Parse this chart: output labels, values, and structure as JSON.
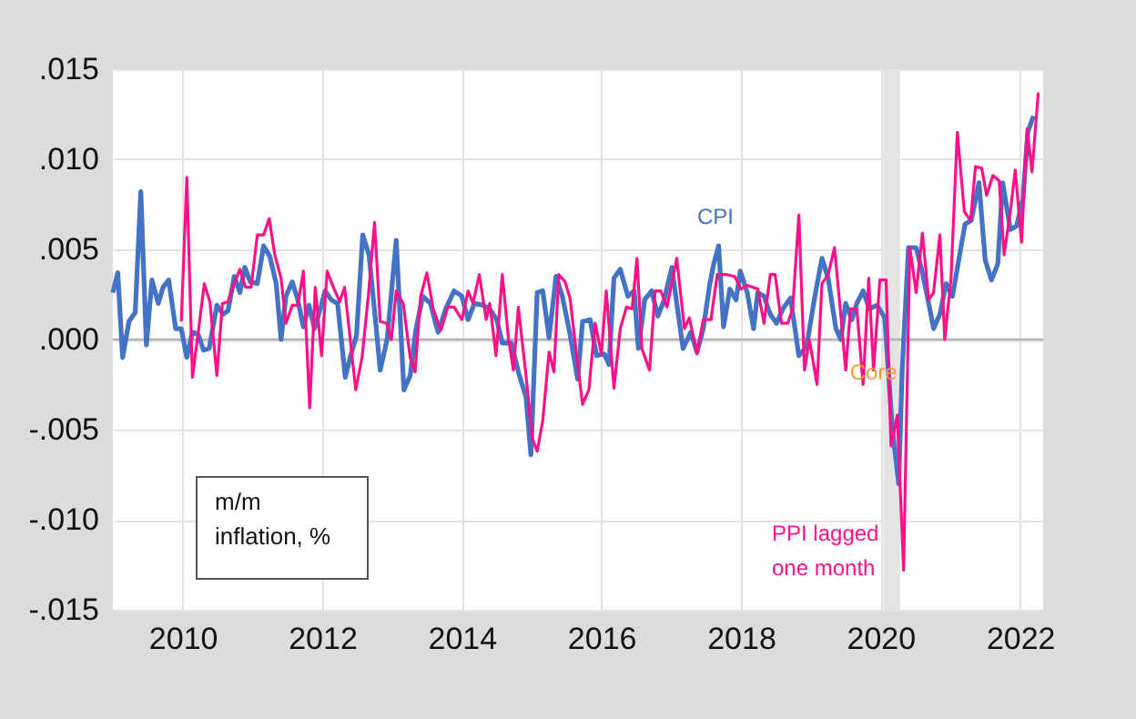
{
  "chart_data": {
    "type": "line",
    "xlim": [
      2009.0,
      2022.33
    ],
    "xticks": [
      2010,
      2012,
      2014,
      2016,
      2018,
      2020,
      2022
    ],
    "ylim": [
      -0.015,
      0.015
    ],
    "yticks": [
      {
        "value": 0.015,
        "label": ".015"
      },
      {
        "value": 0.01,
        "label": ".010"
      },
      {
        "value": 0.005,
        "label": ".005"
      },
      {
        "value": 0,
        "label": ".000"
      },
      {
        "value": -0.005,
        "label": "-.005"
      },
      {
        "value": -0.01,
        "label": "-.010"
      },
      {
        "value": -0.015,
        "label": "-.015"
      }
    ],
    "grid": true,
    "legend": false,
    "line_style": "solid",
    "marker": "none",
    "ref_lines": [
      {
        "axis": "y",
        "value": 0,
        "label": null,
        "color": "#b4b4b4"
      }
    ],
    "bands": [
      {
        "axis": "x",
        "from": 2020.04,
        "to": 2020.28,
        "label": null,
        "color": "#e4e4e4"
      }
    ],
    "annotations": [
      "m/m\ninflation, %",
      {
        "text": "Core",
        "x": 2019.9,
        "y": -0.0018
      }
    ],
    "series": [
      {
        "name": "CPI",
        "color": "#4472c4",
        "x": [
          2009.0,
          2009.07,
          2009.14,
          2009.23,
          2009.32,
          2009.4,
          2009.48,
          2009.56,
          2009.65,
          2009.72,
          2009.8,
          2009.9,
          2009.98,
          2010.06,
          2010.14,
          2010.22,
          2010.3,
          2010.38,
          2010.49,
          2010.58,
          2010.65,
          2010.74,
          2010.82,
          2010.89,
          2010.97,
          2011.07,
          2011.16,
          2011.25,
          2011.34,
          2011.41,
          2011.48,
          2011.57,
          2011.65,
          2011.73,
          2011.81,
          2011.89,
          2011.98,
          2012.04,
          2012.13,
          2012.22,
          2012.33,
          2012.4,
          2012.49,
          2012.58,
          2012.67,
          2012.76,
          2012.83,
          2012.93,
          2013.06,
          2013.17,
          2013.26,
          2013.34,
          2013.44,
          2013.55,
          2013.66,
          2013.77,
          2013.89,
          2014.0,
          2014.09,
          2014.18,
          2014.31,
          2014.4,
          2014.5,
          2014.58,
          2014.71,
          2014.81,
          2014.92,
          2014.99,
          2015.08,
          2015.16,
          2015.25,
          2015.35,
          2015.44,
          2015.55,
          2015.66,
          2015.73,
          2015.84,
          2015.93,
          2016.04,
          2016.11,
          2016.18,
          2016.27,
          2016.38,
          2016.47,
          2016.53,
          2016.62,
          2016.72,
          2016.81,
          2016.9,
          2017.01,
          2017.08,
          2017.17,
          2017.28,
          2017.37,
          2017.46,
          2017.55,
          2017.61,
          2017.68,
          2017.75,
          2017.84,
          2017.93,
          2017.99,
          2018.09,
          2018.18,
          2018.24,
          2018.33,
          2018.42,
          2018.51,
          2018.6,
          2018.71,
          2018.83,
          2018.94,
          2019.05,
          2019.16,
          2019.25,
          2019.36,
          2019.43,
          2019.5,
          2019.59,
          2019.66,
          2019.75,
          2019.84,
          2019.95,
          2020.06,
          2020.17,
          2020.26,
          2020.31,
          2020.4,
          2020.51,
          2020.6,
          2020.67,
          2020.76,
          2020.85,
          2020.94,
          2021.03,
          2021.12,
          2021.21,
          2021.3,
          2021.41,
          2021.5,
          2021.59,
          2021.68,
          2021.75,
          2021.86,
          2021.95,
          2022.04,
          2022.11,
          2022.19
        ],
        "values": [
          0.0026,
          0.0037,
          -0.001,
          0.001,
          0.0015,
          0.0082,
          -0.0003,
          0.0033,
          0.002,
          0.0029,
          0.0033,
          0.0006,
          0.0006,
          -0.001,
          0.0004,
          0.0003,
          -0.0006,
          -0.0005,
          0.0019,
          0.0014,
          0.0016,
          0.0035,
          0.0026,
          0.004,
          0.0032,
          0.0031,
          0.0052,
          0.0046,
          0.0031,
          0.0,
          0.0024,
          0.0032,
          0.0022,
          0.0007,
          0.0019,
          0.0006,
          0.0018,
          0.0027,
          0.0022,
          0.002,
          -0.0021,
          -0.001,
          0.0002,
          0.0058,
          0.0047,
          0.0012,
          -0.0017,
          0.0,
          0.0055,
          -0.0028,
          -0.002,
          0.0005,
          0.0024,
          0.002,
          0.0004,
          0.0017,
          0.0027,
          0.0024,
          0.0011,
          0.002,
          0.0019,
          0.0017,
          0.0011,
          -0.0002,
          -0.0002,
          -0.0018,
          -0.0032,
          -0.0064,
          0.0026,
          0.0027,
          0.0001,
          0.0035,
          0.0024,
          0.0003,
          -0.0022,
          0.001,
          0.0011,
          -0.0009,
          -0.0008,
          -0.0014,
          0.0034,
          0.0039,
          0.0024,
          0.0027,
          -0.0005,
          0.0022,
          0.0027,
          0.0013,
          0.0022,
          0.004,
          0.002,
          -0.0005,
          0.0004,
          -0.0007,
          0.0006,
          0.003,
          0.0042,
          0.0052,
          0.0007,
          0.0028,
          0.0022,
          0.0038,
          0.0026,
          0.0006,
          0.0026,
          0.0024,
          0.0014,
          0.0009,
          0.0017,
          0.0023,
          -0.0009,
          -0.0004,
          0.0022,
          0.0045,
          0.0034,
          0.0006,
          0.0,
          0.002,
          0.0011,
          0.002,
          0.0027,
          0.0017,
          0.0019,
          0.0012,
          -0.005,
          -0.008,
          -0.0017,
          0.0051,
          0.0051,
          0.0037,
          0.0024,
          0.0006,
          0.0014,
          0.0031,
          0.0024,
          0.0044,
          0.0064,
          0.0066,
          0.0087,
          0.0044,
          0.0033,
          0.0042,
          0.0087,
          0.0061,
          0.0063,
          0.0078,
          0.0115,
          0.0124
        ]
      },
      {
        "name": "PPI lagged one month",
        "color": "#ff1088",
        "x": [
          2009.98,
          2010.06,
          2010.14,
          2010.23,
          2010.31,
          2010.39,
          2010.49,
          2010.57,
          2010.65,
          2010.74,
          2010.82,
          2010.9,
          2010.98,
          2011.07,
          2011.16,
          2011.24,
          2011.32,
          2011.41,
          2011.48,
          2011.57,
          2011.65,
          2011.73,
          2011.82,
          2011.9,
          2011.99,
          2012.07,
          2012.16,
          2012.25,
          2012.32,
          2012.48,
          2012.57,
          2012.66,
          2012.75,
          2012.83,
          2012.92,
          2012.99,
          2013.06,
          2013.16,
          2013.26,
          2013.33,
          2013.41,
          2013.5,
          2013.59,
          2013.7,
          2013.8,
          2013.89,
          2014.0,
          2014.09,
          2014.16,
          2014.25,
          2014.35,
          2014.4,
          2014.49,
          2014.58,
          2014.67,
          2014.74,
          2014.81,
          2014.92,
          2015.01,
          2015.08,
          2015.16,
          2015.25,
          2015.32,
          2015.39,
          2015.48,
          2015.55,
          2015.64,
          2015.73,
          2015.82,
          2015.91,
          2016.0,
          2016.07,
          2016.18,
          2016.27,
          2016.36,
          2016.44,
          2016.51,
          2016.58,
          2016.69,
          2016.77,
          2016.85,
          2016.94,
          2017.08,
          2017.19,
          2017.26,
          2017.37,
          2017.46,
          2017.57,
          2017.66,
          2017.8,
          2017.91,
          2018.0,
          2018.09,
          2018.24,
          2018.33,
          2018.42,
          2018.49,
          2018.58,
          2018.67,
          2018.74,
          2018.83,
          2018.91,
          2018.98,
          2019.09,
          2019.16,
          2019.25,
          2019.34,
          2019.43,
          2019.5,
          2019.57,
          2019.66,
          2019.75,
          2019.83,
          2019.9,
          2019.99,
          2020.08,
          2020.15,
          2020.24,
          2020.33,
          2020.42,
          2020.51,
          2020.6,
          2020.69,
          2020.76,
          2020.85,
          2020.92,
          2021.01,
          2021.1,
          2021.2,
          2021.29,
          2021.36,
          2021.45,
          2021.52,
          2021.61,
          2021.7,
          2021.77,
          2021.86,
          2021.93,
          2022.02,
          2022.1,
          2022.17,
          2022.26
        ],
        "values": [
          0.001,
          0.009,
          -0.0021,
          0.0006,
          0.0031,
          0.0021,
          -0.002,
          0.002,
          0.0021,
          0.0031,
          0.0039,
          0.0029,
          0.0029,
          0.0058,
          0.0058,
          0.0067,
          0.0047,
          0.0034,
          0.0009,
          0.0019,
          0.0019,
          0.0038,
          -0.0038,
          0.0029,
          -0.0009,
          0.0038,
          0.0029,
          0.0021,
          0.0029,
          -0.0028,
          -0.001,
          0.0024,
          0.0065,
          0.001,
          0.0009,
          0.0,
          0.0027,
          0.002,
          -0.001,
          -0.0018,
          0.0024,
          0.0037,
          0.0017,
          0.0005,
          0.0018,
          0.0018,
          0.0011,
          0.0027,
          0.002,
          0.0036,
          0.0011,
          0.002,
          -0.0009,
          0.0036,
          0.0,
          -0.0017,
          0.0018,
          -0.002,
          -0.0055,
          -0.0062,
          -0.0045,
          -0.0007,
          -0.0018,
          0.0036,
          0.0032,
          0.0023,
          -0.0007,
          -0.0036,
          -0.0028,
          0.0009,
          -0.0008,
          0.0027,
          -0.0027,
          0.0006,
          0.0018,
          0.0017,
          0.0045,
          -0.0005,
          -0.0017,
          0.0027,
          0.0027,
          0.0018,
          0.0045,
          0.0006,
          0.0012,
          -0.0008,
          0.0011,
          0.0011,
          0.0036,
          0.0036,
          0.0035,
          0.0028,
          0.003,
          0.0028,
          0.0009,
          0.0036,
          0.0036,
          0.0009,
          0.0009,
          0.0017,
          0.0069,
          -0.0017,
          0.0,
          -0.0025,
          0.0031,
          0.0036,
          0.0051,
          0.0014,
          -0.0017,
          0.0017,
          0.0017,
          -0.0025,
          0.0034,
          -0.0017,
          0.0033,
          0.0033,
          -0.0059,
          -0.0042,
          -0.0128,
          0.0051,
          0.0026,
          0.0059,
          0.0022,
          0.0026,
          0.0058,
          0.0,
          0.0034,
          0.0115,
          0.0071,
          0.0066,
          0.0096,
          0.0095,
          0.008,
          0.0091,
          0.0088,
          0.0047,
          0.0071,
          0.0094,
          0.0054,
          0.0117,
          0.0093,
          0.0137
        ]
      }
    ]
  }
}
